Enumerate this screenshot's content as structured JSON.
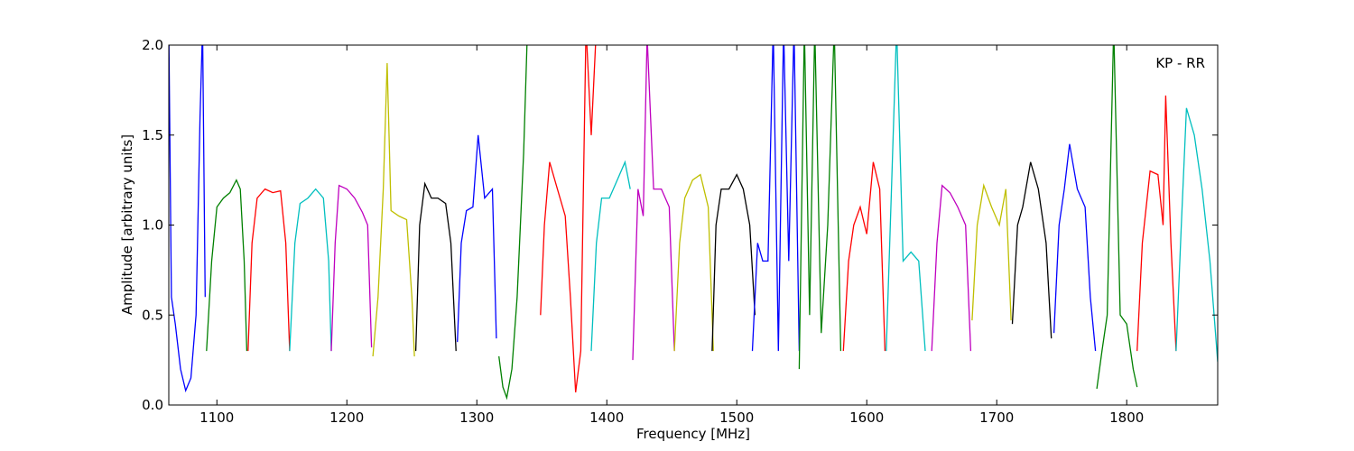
{
  "chart_data": {
    "type": "line",
    "xlabel": "Frequency [MHz]",
    "ylabel": "Amplitude [arbitrary units]",
    "annotation": "KP - RR",
    "xlim": [
      1063,
      1870
    ],
    "ylim": [
      0,
      2
    ],
    "xticks": [
      1100,
      1200,
      1300,
      1400,
      1500,
      1600,
      1700,
      1800
    ],
    "yticks": [
      {
        "value": 0,
        "label": "0.0"
      },
      0.5,
      {
        "value": 1,
        "label": "1.0"
      },
      1.5,
      {
        "value": 2,
        "label": "2.0"
      }
    ],
    "series": [
      {
        "color": "#0000ff",
        "x": [
          1063,
          1065,
          1068,
          1072,
          1076,
          1080,
          1084,
          1087,
          1089,
          1091
        ],
        "values": [
          2.1,
          0.6,
          0.45,
          0.2,
          0.08,
          0.15,
          0.5,
          1.6,
          2.1,
          0.6
        ]
      },
      {
        "color": "#008000",
        "x": [
          1092,
          1096,
          1100,
          1105,
          1110,
          1115,
          1118,
          1121,
          1123
        ],
        "values": [
          0.3,
          0.8,
          1.1,
          1.15,
          1.18,
          1.25,
          1.2,
          0.8,
          0.3
        ]
      },
      {
        "color": "#ff0000",
        "x": [
          1124,
          1127,
          1131,
          1137,
          1143,
          1149,
          1153,
          1156
        ],
        "values": [
          0.3,
          0.9,
          1.15,
          1.2,
          1.18,
          1.19,
          0.9,
          0.3
        ]
      },
      {
        "color": "#00bfbf",
        "x": [
          1156,
          1160,
          1164,
          1170,
          1176,
          1182,
          1186,
          1188
        ],
        "values": [
          0.3,
          0.9,
          1.12,
          1.15,
          1.2,
          1.15,
          0.8,
          0.3
        ]
      },
      {
        "color": "#bf00bf",
        "x": [
          1188,
          1191,
          1194,
          1200,
          1206,
          1212,
          1216,
          1219
        ],
        "values": [
          0.3,
          0.9,
          1.22,
          1.2,
          1.15,
          1.07,
          1.0,
          0.32
        ]
      },
      {
        "color": "#bfbf00",
        "x": [
          1220,
          1224,
          1228,
          1231,
          1234,
          1240,
          1246,
          1250,
          1252
        ],
        "values": [
          0.27,
          0.6,
          1.2,
          1.9,
          1.08,
          1.05,
          1.03,
          0.6,
          0.27
        ]
      },
      {
        "color": "#000000",
        "x": [
          1253,
          1256,
          1260,
          1265,
          1270,
          1276,
          1280,
          1284
        ],
        "values": [
          0.3,
          1.0,
          1.23,
          1.15,
          1.15,
          1.12,
          0.9,
          0.3
        ]
      },
      {
        "color": "#0000ff",
        "x": [
          1285,
          1288,
          1292,
          1297,
          1301,
          1306,
          1312,
          1315
        ],
        "values": [
          0.35,
          0.9,
          1.08,
          1.1,
          1.5,
          1.15,
          1.2,
          0.37
        ]
      },
      {
        "color": "#008000",
        "x": [
          1317,
          1320,
          1323,
          1327,
          1331,
          1336,
          1339
        ],
        "values": [
          0.27,
          0.1,
          0.04,
          0.2,
          0.6,
          1.4,
          2.1
        ]
      },
      {
        "color": "#ff0000",
        "x": [
          1349,
          1352,
          1356,
          1362,
          1368,
          1372,
          1376,
          1380,
          1384,
          1388,
          1392
        ],
        "values": [
          0.5,
          1.0,
          1.35,
          1.2,
          1.05,
          0.6,
          0.07,
          0.3,
          2.1,
          1.5,
          2.1
        ]
      },
      {
        "color": "#00bfbf",
        "x": [
          1388,
          1392,
          1396,
          1402,
          1408,
          1414,
          1418
        ],
        "values": [
          0.3,
          0.9,
          1.15,
          1.15,
          1.25,
          1.35,
          1.2
        ]
      },
      {
        "color": "#bf00bf",
        "x": [
          1420,
          1424,
          1428,
          1431,
          1436,
          1442,
          1448,
          1452
        ],
        "values": [
          0.25,
          1.2,
          1.05,
          2.05,
          1.2,
          1.2,
          1.1,
          0.3
        ]
      },
      {
        "color": "#bfbf00",
        "x": [
          1452,
          1456,
          1460,
          1466,
          1472,
          1478,
          1482
        ],
        "values": [
          0.3,
          0.9,
          1.15,
          1.25,
          1.28,
          1.1,
          0.3
        ]
      },
      {
        "color": "#000000",
        "x": [
          1481,
          1484,
          1488,
          1494,
          1500,
          1505,
          1510,
          1514
        ],
        "values": [
          0.3,
          1.0,
          1.2,
          1.2,
          1.28,
          1.2,
          1.0,
          0.5
        ]
      },
      {
        "color": "#0000ff",
        "x": [
          1512,
          1516,
          1520,
          1524,
          1528,
          1532,
          1536,
          1540,
          1544,
          1548
        ],
        "values": [
          0.3,
          0.9,
          0.8,
          0.8,
          2.1,
          0.3,
          2.1,
          0.8,
          2.1,
          0.3
        ]
      },
      {
        "color": "#008000",
        "x": [
          1548,
          1552,
          1556,
          1560,
          1565,
          1570,
          1575,
          1580
        ],
        "values": [
          0.2,
          2.1,
          0.5,
          2.1,
          0.4,
          1.0,
          2.1,
          0.3
        ]
      },
      {
        "color": "#ff0000",
        "x": [
          1582,
          1586,
          1590,
          1595,
          1600,
          1605,
          1610,
          1614
        ],
        "values": [
          0.3,
          0.8,
          1.0,
          1.1,
          0.95,
          1.35,
          1.2,
          0.3
        ]
      },
      {
        "color": "#00bfbf",
        "x": [
          1615,
          1619,
          1623,
          1628,
          1634,
          1640,
          1645
        ],
        "values": [
          0.3,
          1.2,
          2.1,
          0.8,
          0.85,
          0.8,
          0.3
        ]
      },
      {
        "color": "#bf00bf",
        "x": [
          1650,
          1654,
          1658,
          1664,
          1670,
          1676,
          1680
        ],
        "values": [
          0.3,
          0.9,
          1.22,
          1.18,
          1.1,
          1.0,
          0.3
        ]
      },
      {
        "color": "#bfbf00",
        "x": [
          1681,
          1685,
          1690,
          1696,
          1702,
          1707,
          1711
        ],
        "values": [
          0.47,
          1.0,
          1.22,
          1.1,
          1.0,
          1.2,
          0.47
        ]
      },
      {
        "color": "#000000",
        "x": [
          1712,
          1716,
          1720,
          1726,
          1732,
          1738,
          1742
        ],
        "values": [
          0.45,
          1.0,
          1.1,
          1.35,
          1.2,
          0.9,
          0.37
        ]
      },
      {
        "color": "#0000ff",
        "x": [
          1744,
          1748,
          1752,
          1756,
          1762,
          1768,
          1772,
          1776
        ],
        "values": [
          0.4,
          1.0,
          1.2,
          1.45,
          1.2,
          1.1,
          0.6,
          0.3
        ]
      },
      {
        "color": "#008000",
        "x": [
          1777,
          1781,
          1785,
          1790,
          1795,
          1800,
          1805,
          1808
        ],
        "values": [
          0.09,
          0.3,
          0.5,
          2.1,
          0.5,
          0.45,
          0.2,
          0.1
        ]
      },
      {
        "color": "#ff0000",
        "x": [
          1808,
          1812,
          1818,
          1824,
          1828,
          1830,
          1834,
          1838
        ],
        "values": [
          0.3,
          0.9,
          1.3,
          1.28,
          1.0,
          1.72,
          0.9,
          0.3
        ]
      },
      {
        "color": "#00bfbf",
        "x": [
          1838,
          1842,
          1846,
          1852,
          1858,
          1864,
          1870
        ],
        "values": [
          0.3,
          1.0,
          1.65,
          1.5,
          1.2,
          0.8,
          0.24
        ]
      }
    ]
  }
}
